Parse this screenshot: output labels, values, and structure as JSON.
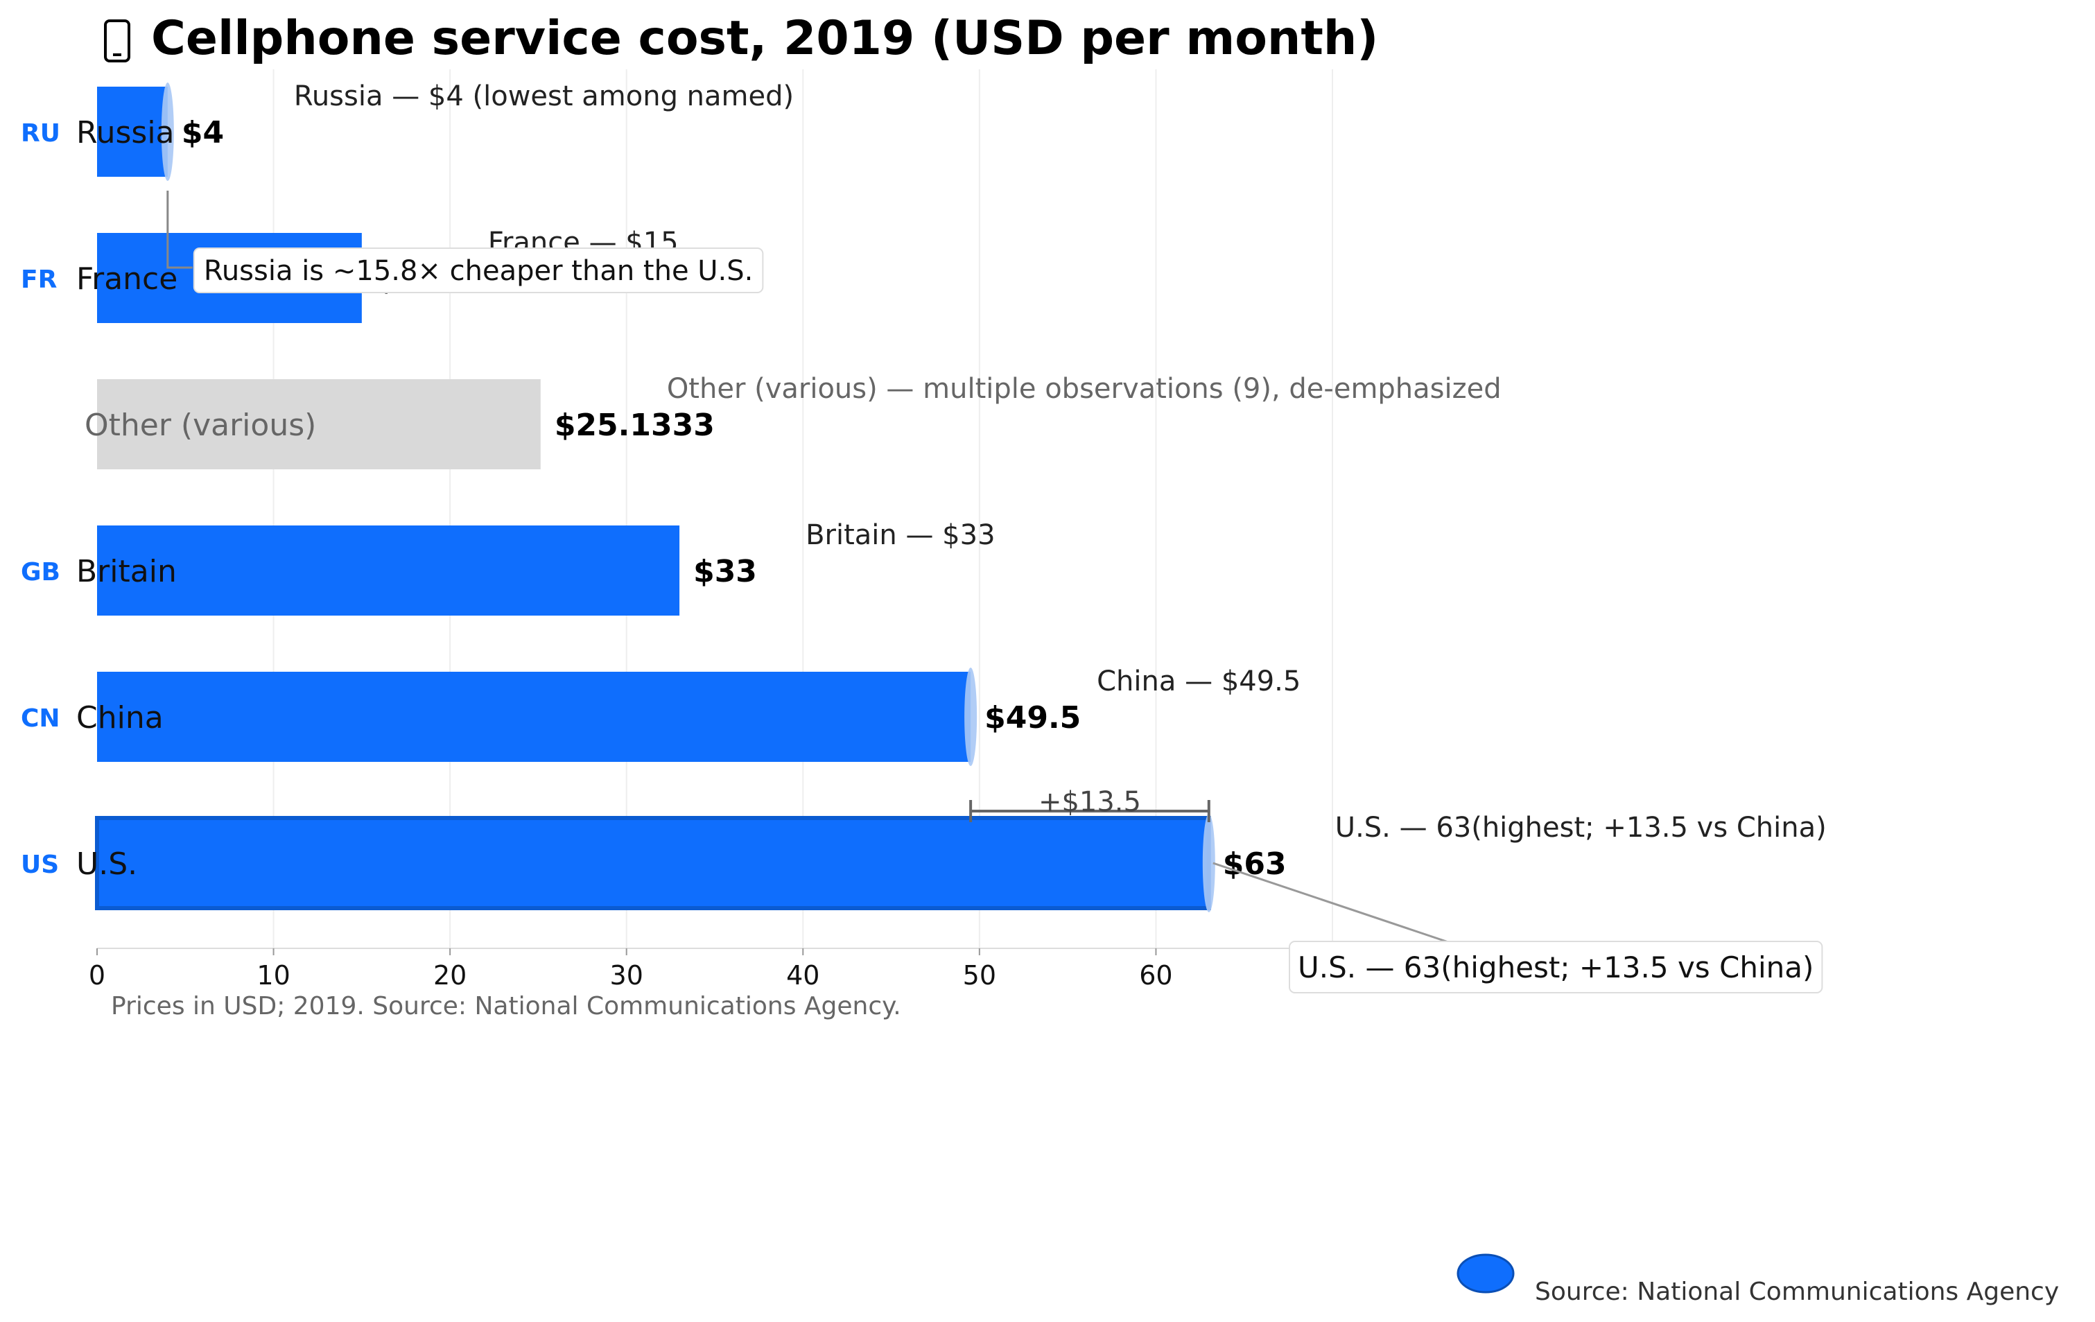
{
  "chart_data": {
    "type": "bar",
    "orientation": "horizontal",
    "title": "Cellphone service cost, 2019 (USD per month)",
    "title_icon": "phone-icon",
    "categories": [
      "Russia",
      "France",
      "Other (various)",
      "Britain",
      "China",
      "U.S."
    ],
    "codes": [
      "RU",
      "FR",
      "",
      "GB",
      "CN",
      "US"
    ],
    "values": [
      4,
      15,
      25.1333,
      33,
      49.5,
      63
    ],
    "value_labels": [
      "$4",
      "$15",
      "$25.1333",
      "$33",
      "$49.5",
      "$63"
    ],
    "annotations": [
      "Russia — $4 (lowest among named)",
      "France — $15",
      "Other (various) — multiple observations (9), de-emphasized",
      "Britain — $33",
      "China — $49.5",
      "U.S. — 63(highest; +13.5 vs China)"
    ],
    "callouts": {
      "russia_ratio": "Russia is ~15.8× cheaper than the U.S.",
      "us_highest": "U.S. — 63(highest; +13.5 vs China)",
      "difference": "+$13.5"
    },
    "x_ticks": [
      0,
      10,
      20,
      30,
      40,
      50,
      60,
      70
    ],
    "xlim": [
      0,
      70
    ],
    "grid": true,
    "caption": "Prices in USD; 2019. Source: National Communications Agency.",
    "legend": {
      "label": "Source: National Communications Agency",
      "placement": "bottom-right"
    },
    "colors": {
      "bar": "#0f6efd",
      "bar_highlight": "#0b5bd1",
      "other_bar": "#d9d9d9",
      "code_text": "#0f6efd",
      "muted_text": "#666666",
      "grid": "#eeeeee"
    }
  }
}
